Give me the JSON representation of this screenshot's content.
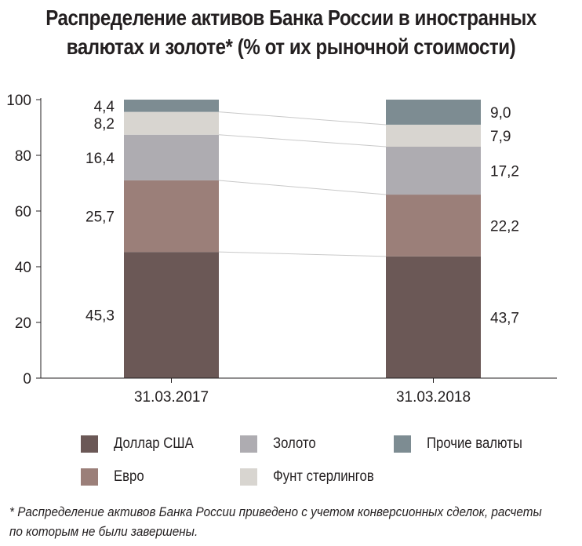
{
  "title": {
    "line1": "Распределение активов Банка России в иностранных",
    "line2": "валютах и золоте* (% от их рыночной стоимости)"
  },
  "chart_data": {
    "type": "bar",
    "stacked": true,
    "categories": [
      "31.03.2017",
      "31.03.2018"
    ],
    "series": [
      {
        "name": "Доллар США",
        "values": [
          45.3,
          43.7
        ],
        "labels": [
          "45,3",
          "43,7"
        ],
        "color": "#6b5856"
      },
      {
        "name": "Евро",
        "values": [
          25.7,
          22.2
        ],
        "labels": [
          "25,7",
          "22,2"
        ],
        "color": "#9b7f79"
      },
      {
        "name": "Золото",
        "values": [
          16.4,
          17.2
        ],
        "labels": [
          "16,4",
          "17,2"
        ],
        "color": "#aeacb1"
      },
      {
        "name": "Фунт стерлингов",
        "values": [
          8.2,
          7.9
        ],
        "labels": [
          "8,2",
          "7,9"
        ],
        "color": "#d8d5d0"
      },
      {
        "name": "Прочие валюты",
        "values": [
          4.4,
          9.0
        ],
        "labels": [
          "4,4",
          "9,0"
        ],
        "color": "#7d8c92"
      }
    ],
    "ylim": [
      0,
      100
    ],
    "yticks": [
      0,
      20,
      40,
      60,
      80,
      100
    ],
    "xlabel": "",
    "ylabel": "",
    "grid": false,
    "legend_placement": "bottom"
  },
  "legend": {
    "items": [
      {
        "label": "Доллар США",
        "color": "#6b5856"
      },
      {
        "label": "Золото",
        "color": "#aeacb1"
      },
      {
        "label": "Прочие валюты",
        "color": "#7d8c92"
      },
      {
        "label": "Евро",
        "color": "#9b7f79"
      },
      {
        "label": "Фунт стерлингов",
        "color": "#d8d5d0"
      }
    ]
  },
  "footnote": {
    "line1": "* Распределение активов Банка России приведено с учетом конверсионных сделок, расчеты",
    "line2": "по которым не были завершены."
  }
}
